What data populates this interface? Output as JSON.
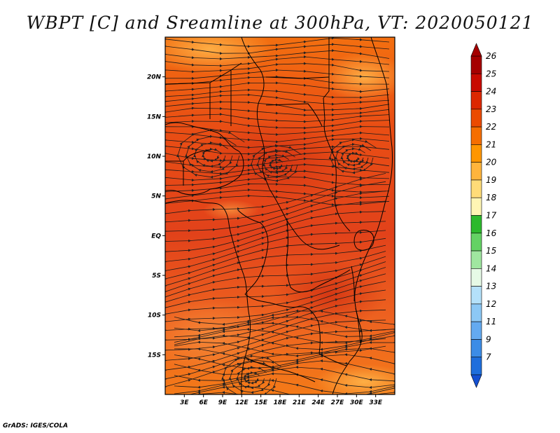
{
  "title": "WBPT [C] and Sreamline at 300hPa, VT: 2020050121",
  "credit": "GrADS: IGES/COLA",
  "map": {
    "lon_range": [
      0,
      36
    ],
    "lat_range": [
      -20,
      25
    ],
    "lat_ticks": [
      {
        "value": 20,
        "label": "20N"
      },
      {
        "value": 15,
        "label": "15N"
      },
      {
        "value": 10,
        "label": "10N"
      },
      {
        "value": 5,
        "label": "5N"
      },
      {
        "value": 0,
        "label": "EQ"
      },
      {
        "value": -5,
        "label": "5S"
      },
      {
        "value": -10,
        "label": "10S"
      },
      {
        "value": -15,
        "label": "15S"
      }
    ],
    "lon_ticks": [
      {
        "value": 3,
        "label": "3E"
      },
      {
        "value": 6,
        "label": "6E"
      },
      {
        "value": 9,
        "label": "9E"
      },
      {
        "value": 12,
        "label": "12E"
      },
      {
        "value": 15,
        "label": "15E"
      },
      {
        "value": 18,
        "label": "18E"
      },
      {
        "value": 21,
        "label": "21E"
      },
      {
        "value": 24,
        "label": "24E"
      },
      {
        "value": 27,
        "label": "27E"
      },
      {
        "value": 30,
        "label": "30E"
      },
      {
        "value": 33,
        "label": "33E"
      }
    ]
  },
  "colorbar": {
    "levels": [
      {
        "label": "26",
        "color": "#a50000"
      },
      {
        "label": "25",
        "color": "#c80a00"
      },
      {
        "label": "24",
        "color": "#dc2800"
      },
      {
        "label": "23",
        "color": "#eb4b00"
      },
      {
        "label": "22",
        "color": "#f56e00"
      },
      {
        "label": "21",
        "color": "#ff9600"
      },
      {
        "label": "20",
        "color": "#ffb43c"
      },
      {
        "label": "19",
        "color": "#ffdc78"
      },
      {
        "label": "18",
        "color": "#fff5b4"
      },
      {
        "label": "17",
        "color": "#2db92d"
      },
      {
        "label": "16",
        "color": "#64d264"
      },
      {
        "label": "15",
        "color": "#a0e6a0"
      },
      {
        "label": "14",
        "color": "#e6fae6"
      },
      {
        "label": "13",
        "color": "#b4e1fa"
      },
      {
        "label": "12",
        "color": "#8cc8f5"
      },
      {
        "label": "11",
        "color": "#64aaf0"
      },
      {
        "label": "9",
        "color": "#3c8ce6"
      },
      {
        "label": "7",
        "color": "#1e6edc"
      }
    ],
    "bottom_color": "#1450d2"
  }
}
